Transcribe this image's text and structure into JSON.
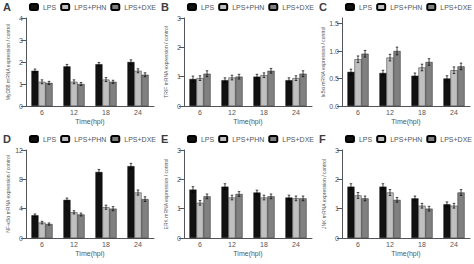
{
  "chart_data": [
    {
      "type": "bar",
      "title": "A",
      "xlabel": "Time(hpi)",
      "ylabel": "MyD88 mRNA expression / control",
      "categories": [
        "6",
        "12",
        "18",
        "24"
      ],
      "series": [
        {
          "name": "LPS",
          "color": "#111111",
          "values": [
            1.6,
            1.8,
            1.9,
            2.0
          ],
          "errors": [
            0.08,
            0.09,
            0.08,
            0.1
          ]
        },
        {
          "name": "LPS+PHN",
          "color": "#c0c0c0",
          "values": [
            1.1,
            1.1,
            1.2,
            1.6
          ],
          "errors": [
            0.09,
            0.09,
            0.09,
            0.09
          ]
        },
        {
          "name": "LPS+DXE",
          "color": "#808080",
          "values": [
            1.05,
            1.0,
            1.1,
            1.42
          ],
          "errors": [
            0.07,
            0.07,
            0.07,
            0.09
          ]
        }
      ],
      "ylim": [
        0,
        4
      ],
      "yticks": [
        0,
        1,
        2,
        3,
        4
      ],
      "grid": false,
      "legend": "upper right"
    },
    {
      "type": "bar",
      "title": "B",
      "xlabel": "Time(hpi)",
      "ylabel": "TRIF mRNA expression / control",
      "categories": [
        "6",
        "12",
        "18",
        "24"
      ],
      "series": [
        {
          "name": "LPS",
          "color": "#111111",
          "values": [
            0.92,
            0.88,
            1.0,
            0.88
          ],
          "errors": [
            0.1,
            0.08,
            0.08,
            0.08
          ]
        },
        {
          "name": "LPS+PHN",
          "color": "#c0c0c0",
          "values": [
            0.95,
            0.97,
            1.05,
            0.95
          ],
          "errors": [
            0.08,
            0.08,
            0.08,
            0.08
          ]
        },
        {
          "name": "LPS+DXE",
          "color": "#808080",
          "values": [
            1.1,
            1.0,
            1.2,
            1.1
          ],
          "errors": [
            0.1,
            0.08,
            0.08,
            0.1
          ]
        }
      ],
      "ylim": [
        0,
        3
      ],
      "yticks": [
        0,
        1,
        2,
        3
      ],
      "grid": false,
      "legend": "upper right"
    },
    {
      "type": "bar",
      "title": "C",
      "xlabel": "Time(hpi)",
      "ylabel": "IκBα mRNA expression / control",
      "categories": [
        "6",
        "12",
        "18",
        "24"
      ],
      "series": [
        {
          "name": "LPS",
          "color": "#111111",
          "values": [
            0.62,
            0.6,
            0.55,
            0.5
          ],
          "errors": [
            0.05,
            0.05,
            0.05,
            0.05
          ]
        },
        {
          "name": "LPS+PHN",
          "color": "#c0c0c0",
          "values": [
            0.85,
            0.88,
            0.7,
            0.65
          ],
          "errors": [
            0.06,
            0.06,
            0.06,
            0.06
          ]
        },
        {
          "name": "LPS+DXE",
          "color": "#808080",
          "values": [
            0.95,
            1.0,
            0.8,
            0.72
          ],
          "errors": [
            0.06,
            0.07,
            0.06,
            0.06
          ]
        }
      ],
      "ylim": [
        0.0,
        1.6
      ],
      "yticks": [
        {
          "value": 0,
          "label": "0.0"
        },
        0.5,
        {
          "value": 1,
          "label": "1.0"
        },
        1.5
      ],
      "grid": false,
      "legend": "upper right"
    },
    {
      "type": "bar",
      "title": "D",
      "xlabel": "Time(hpi)",
      "ylabel": "NF-κBα mRNA expression / control",
      "categories": [
        "6",
        "12",
        "18",
        "24"
      ],
      "series": [
        {
          "name": "LPS",
          "color": "#111111",
          "values": [
            3.1,
            5.2,
            9.0,
            9.8
          ],
          "errors": [
            0.18,
            0.25,
            0.35,
            0.38
          ]
        },
        {
          "name": "LPS+PHN",
          "color": "#c0c0c0",
          "values": [
            2.1,
            3.5,
            4.2,
            6.2
          ],
          "errors": [
            0.18,
            0.22,
            0.28,
            0.35
          ]
        },
        {
          "name": "LPS+DXE",
          "color": "#808080",
          "values": [
            1.9,
            3.2,
            4.0,
            5.3
          ],
          "errors": [
            0.15,
            0.2,
            0.28,
            0.32
          ]
        }
      ],
      "ylim": [
        0,
        12
      ],
      "yticks": [
        0,
        4,
        8,
        12
      ],
      "grid": false,
      "legend": "upper right"
    },
    {
      "type": "bar",
      "title": "E",
      "xlabel": "Time(hpi)",
      "ylabel": "ERK mRNA expression / control",
      "categories": [
        "6",
        "12",
        "18",
        "24"
      ],
      "series": [
        {
          "name": "LPS",
          "color": "#111111",
          "values": [
            1.65,
            1.75,
            1.55,
            1.38
          ],
          "errors": [
            0.1,
            0.1,
            0.08,
            0.08
          ]
        },
        {
          "name": "LPS+PHN",
          "color": "#c0c0c0",
          "values": [
            1.2,
            1.38,
            1.38,
            1.35
          ],
          "errors": [
            0.08,
            0.08,
            0.08,
            0.08
          ]
        },
        {
          "name": "LPS+DXE",
          "color": "#808080",
          "values": [
            1.42,
            1.5,
            1.42,
            1.35
          ],
          "errors": [
            0.08,
            0.08,
            0.08,
            0.08
          ]
        }
      ],
      "ylim": [
        0,
        3
      ],
      "yticks": [
        0,
        1,
        2,
        3
      ],
      "grid": false,
      "legend": "upper right"
    },
    {
      "type": "bar",
      "title": "F",
      "xlabel": "Time(hpi)",
      "ylabel": "JNK mRNA expression / control",
      "categories": [
        "6",
        "12",
        "18",
        "24"
      ],
      "series": [
        {
          "name": "LPS",
          "color": "#111111",
          "values": [
            1.75,
            1.75,
            1.35,
            1.15
          ],
          "errors": [
            0.1,
            0.1,
            0.08,
            0.08
          ]
        },
        {
          "name": "LPS+PHN",
          "color": "#c0c0c0",
          "values": [
            1.45,
            1.55,
            1.1,
            1.1
          ],
          "errors": [
            0.1,
            0.1,
            0.08,
            0.08
          ]
        },
        {
          "name": "LPS+DXE",
          "color": "#808080",
          "values": [
            1.35,
            1.3,
            1.0,
            1.55
          ],
          "errors": [
            0.08,
            0.08,
            0.08,
            0.1
          ]
        }
      ],
      "ylim": [
        0,
        3
      ],
      "yticks": [
        0,
        1,
        2,
        3
      ],
      "grid": false,
      "legend": "upper right"
    }
  ]
}
